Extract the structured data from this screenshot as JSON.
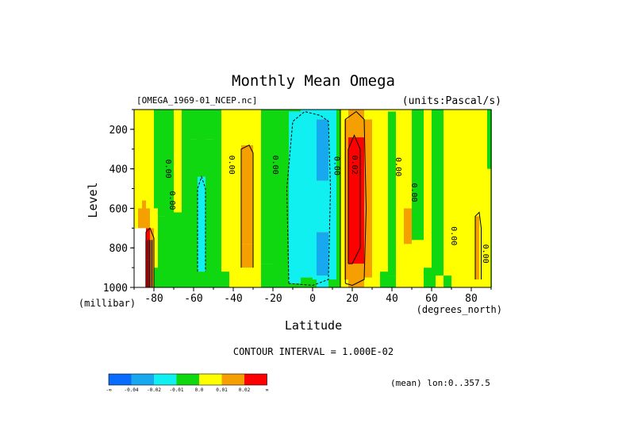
{
  "chart_data": {
    "type": "heatmap",
    "title": "Monthly Mean Omega",
    "dataset_label": "[OMEGA_1969-01_NCEP.nc]",
    "units_label": "(units:Pascal/s)",
    "xlabel": "Latitude",
    "x_unit_label": "(degrees_north)",
    "ylabel": "Level",
    "y_unit_label": "(millibar)",
    "xlim": [
      -90,
      90
    ],
    "ylim": [
      1000,
      100
    ],
    "y_inverted": true,
    "x_ticks": [
      -80,
      -60,
      -40,
      -20,
      0,
      20,
      40,
      60,
      80
    ],
    "y_ticks": [
      200,
      400,
      600,
      800,
      1000
    ],
    "contour_interval_text": "CONTOUR INTERVAL = 1.000E-02",
    "mean_text": "(mean) lon:0..357.5",
    "colorbar": {
      "colors": [
        "#0a6cff",
        "#18a8f0",
        "#10f0f0",
        "#10d810",
        "#ffff00",
        "#f5a000",
        "#ff0000"
      ],
      "labels": [
        "-∞",
        "-0.04",
        "-0.02",
        "-0.01",
        "0.0",
        "0.01",
        "0.02",
        "∞"
      ]
    },
    "contour_labels": [
      {
        "text": "0.00",
        "lat": -74,
        "level": 400
      },
      {
        "text": "0.00",
        "lat": -72,
        "level": 560
      },
      {
        "text": "0.00",
        "lat": -42,
        "level": 380
      },
      {
        "text": "0.00",
        "lat": -20,
        "level": 380
      },
      {
        "text": "0.00",
        "lat": 11,
        "level": 385
      },
      {
        "text": "0.02",
        "lat": 20,
        "level": 380
      },
      {
        "text": "0.00",
        "lat": 42,
        "level": 390
      },
      {
        "text": "0.00",
        "lat": 50,
        "level": 520
      },
      {
        "text": "0.00",
        "lat": 70,
        "level": 740
      },
      {
        "text": "0.00",
        "lat": 86,
        "level": 830
      }
    ],
    "columns": [
      {
        "lat": -90,
        "bands": [
          [
            1000,
            100,
            "#ffff00"
          ]
        ]
      },
      {
        "lat": -88,
        "bands": [
          [
            1000,
            600,
            "#f5a000"
          ],
          [
            600,
            270,
            "#ffff00"
          ],
          [
            270,
            100,
            "#ffff00"
          ]
        ]
      },
      {
        "lat": -86,
        "bands": [
          [
            1000,
            700,
            "#ffff00"
          ],
          [
            700,
            560,
            "#f5a000"
          ],
          [
            560,
            100,
            "#ffff00"
          ]
        ]
      },
      {
        "lat": -84,
        "bands": [
          [
            1000,
            860,
            "#ff0000"
          ],
          [
            860,
            700,
            "#ff0000"
          ],
          [
            700,
            600,
            "#f5a000"
          ],
          [
            600,
            100,
            "#ffff00"
          ]
        ]
      },
      {
        "lat": -82,
        "bands": [
          [
            1000,
            700,
            "#f5a000"
          ],
          [
            700,
            100,
            "#ffff00"
          ]
        ]
      },
      {
        "lat": -80,
        "bands": [
          [
            1000,
            900,
            "#10d810"
          ],
          [
            900,
            600,
            "#ffff00"
          ],
          [
            600,
            100,
            "#10d810"
          ]
        ]
      },
      {
        "lat": -78,
        "bands": [
          [
            1000,
            640,
            "#10d810"
          ],
          [
            640,
            100,
            "#10d810"
          ]
        ]
      },
      {
        "lat": -74,
        "bands": [
          [
            1000,
            100,
            "#10d810"
          ]
        ]
      },
      {
        "lat": -70,
        "bands": [
          [
            1000,
            620,
            "#10d810"
          ],
          [
            620,
            100,
            "#ffff00"
          ]
        ]
      },
      {
        "lat": -66,
        "bands": [
          [
            1000,
            100,
            "#10d810"
          ]
        ]
      },
      {
        "lat": -62,
        "bands": [
          [
            1000,
            250,
            "#10d810"
          ],
          [
            250,
            100,
            "#10d810"
          ]
        ]
      },
      {
        "lat": -58,
        "bands": [
          [
            1000,
            920,
            "#10d810"
          ],
          [
            920,
            440,
            "#10f0f0"
          ],
          [
            440,
            100,
            "#10d810"
          ]
        ]
      },
      {
        "lat": -54,
        "bands": [
          [
            1000,
            250,
            "#10d810"
          ],
          [
            250,
            100,
            "#10d810"
          ]
        ]
      },
      {
        "lat": -50,
        "bands": [
          [
            1000,
            100,
            "#10d810"
          ]
        ]
      },
      {
        "lat": -46,
        "bands": [
          [
            1000,
            920,
            "#10d810"
          ],
          [
            920,
            100,
            "#ffff00"
          ]
        ]
      },
      {
        "lat": -42,
        "bands": [
          [
            1000,
            950,
            "#ffff00"
          ],
          [
            950,
            100,
            "#ffff00"
          ]
        ]
      },
      {
        "lat": -36,
        "bands": [
          [
            1000,
            900,
            "#ffff00"
          ],
          [
            900,
            780,
            "#f5a000"
          ],
          [
            780,
            280,
            "#f5a000"
          ],
          [
            280,
            100,
            "#ffff00"
          ]
        ]
      },
      {
        "lat": -30,
        "bands": [
          [
            1000,
            940,
            "#ffff00"
          ],
          [
            940,
            100,
            "#ffff00"
          ]
        ]
      },
      {
        "lat": -26,
        "bands": [
          [
            1000,
            880,
            "#10d810"
          ],
          [
            880,
            100,
            "#10d810"
          ]
        ]
      },
      {
        "lat": -20,
        "bands": [
          [
            1000,
            100,
            "#10d810"
          ]
        ]
      },
      {
        "lat": -16,
        "bands": [
          [
            1000,
            100,
            "#10d810"
          ]
        ]
      },
      {
        "lat": -12,
        "bands": [
          [
            1000,
            980,
            "#10d810"
          ],
          [
            980,
            110,
            "#10f0f0"
          ],
          [
            110,
            100,
            "#10d810"
          ]
        ]
      },
      {
        "lat": -6,
        "bands": [
          [
            1000,
            950,
            "#10d810"
          ],
          [
            950,
            100,
            "#10f0f0"
          ]
        ]
      },
      {
        "lat": 0,
        "bands": [
          [
            1000,
            960,
            "#10d810"
          ],
          [
            960,
            100,
            "#10f0f0"
          ]
        ]
      },
      {
        "lat": 2,
        "bands": [
          [
            1000,
            940,
            "#10f0f0"
          ],
          [
            940,
            720,
            "#18a8f0"
          ],
          [
            720,
            460,
            "#10f0f0"
          ],
          [
            460,
            150,
            "#18a8f0"
          ],
          [
            150,
            100,
            "#10f0f0"
          ]
        ]
      },
      {
        "lat": 8,
        "bands": [
          [
            1000,
            960,
            "#10d810"
          ],
          [
            960,
            100,
            "#10f0f0"
          ]
        ]
      },
      {
        "lat": 12,
        "bands": [
          [
            1000,
            100,
            "#10d810"
          ]
        ]
      },
      {
        "lat": 14,
        "bands": [
          [
            1000,
            100,
            "#ffff00"
          ]
        ]
      },
      {
        "lat": 16,
        "bands": [
          [
            1000,
            960,
            "#ffff00"
          ],
          [
            960,
            150,
            "#f5a000"
          ],
          [
            150,
            100,
            "#ffff00"
          ]
        ]
      },
      {
        "lat": 18,
        "bands": [
          [
            1000,
            880,
            "#f5a000"
          ],
          [
            880,
            240,
            "#ff0000"
          ],
          [
            240,
            100,
            "#f5a000"
          ]
        ]
      },
      {
        "lat": 26,
        "bands": [
          [
            1000,
            950,
            "#ffff00"
          ],
          [
            950,
            150,
            "#f5a000"
          ],
          [
            150,
            100,
            "#ffff00"
          ]
        ]
      },
      {
        "lat": 30,
        "bands": [
          [
            1000,
            100,
            "#ffff00"
          ]
        ]
      },
      {
        "lat": 34,
        "bands": [
          [
            1000,
            920,
            "#10d810"
          ],
          [
            920,
            100,
            "#ffff00"
          ]
        ]
      },
      {
        "lat": 38,
        "bands": [
          [
            1000,
            940,
            "#10d810"
          ],
          [
            940,
            110,
            "#10d810"
          ],
          [
            110,
            100,
            "#ffff00"
          ]
        ]
      },
      {
        "lat": 42,
        "bands": [
          [
            1000,
            100,
            "#ffff00"
          ]
        ]
      },
      {
        "lat": 46,
        "bands": [
          [
            1000,
            940,
            "#ffff00"
          ],
          [
            940,
            780,
            "#ffff00"
          ],
          [
            780,
            600,
            "#f5a000"
          ],
          [
            600,
            100,
            "#ffff00"
          ]
        ]
      },
      {
        "lat": 50,
        "bands": [
          [
            1000,
            760,
            "#ffff00"
          ],
          [
            760,
            100,
            "#10d810"
          ]
        ]
      },
      {
        "lat": 56,
        "bands": [
          [
            1000,
            900,
            "#10d810"
          ],
          [
            900,
            100,
            "#ffff00"
          ]
        ]
      },
      {
        "lat": 60,
        "bands": [
          [
            1000,
            100,
            "#10d810"
          ]
        ]
      },
      {
        "lat": 62,
        "bands": [
          [
            1000,
            940,
            "#ffff00"
          ],
          [
            940,
            100,
            "#10d810"
          ]
        ]
      },
      {
        "lat": 66,
        "bands": [
          [
            1000,
            940,
            "#10d810"
          ],
          [
            940,
            400,
            "#ffff00"
          ],
          [
            400,
            100,
            "#ffff00"
          ]
        ]
      },
      {
        "lat": 70,
        "bands": [
          [
            1000,
            100,
            "#ffff00"
          ]
        ]
      },
      {
        "lat": 74,
        "bands": [
          [
            1000,
            800,
            "#ffff00"
          ],
          [
            800,
            200,
            "#ffff00"
          ],
          [
            200,
            100,
            "#ffff00"
          ]
        ]
      },
      {
        "lat": 78,
        "bands": [
          [
            1000,
            100,
            "#ffff00"
          ]
        ]
      },
      {
        "lat": 82,
        "bands": [
          [
            1000,
            960,
            "#ffff00"
          ],
          [
            960,
            640,
            "#f5a000"
          ],
          [
            640,
            100,
            "#ffff00"
          ]
        ]
      },
      {
        "lat": 84,
        "bands": [
          [
            1000,
            100,
            "#ffff00"
          ]
        ]
      },
      {
        "lat": 88,
        "bands": [
          [
            1000,
            400,
            "#ffff00"
          ],
          [
            400,
            100,
            "#10d810"
          ]
        ]
      },
      {
        "lat": 90,
        "bands": [
          [
            1000,
            100,
            "#10d810"
          ]
        ]
      }
    ],
    "contours": [
      {
        "dash": false,
        "points": [
          [
            14,
            1000
          ],
          [
            14,
            100
          ]
        ]
      },
      {
        "dash": false,
        "points": [
          [
            16.5,
            980
          ],
          [
            16.5,
            150
          ],
          [
            22,
            110
          ],
          [
            26,
            150
          ],
          [
            27,
            600
          ],
          [
            26,
            960
          ],
          [
            20,
            990
          ],
          [
            16.5,
            980
          ]
        ]
      },
      {
        "dash": false,
        "points": [
          [
            18,
            880
          ],
          [
            18,
            300
          ],
          [
            21,
            230
          ],
          [
            24,
            300
          ],
          [
            24,
            800
          ],
          [
            20,
            880
          ],
          [
            18,
            880
          ]
        ]
      },
      {
        "dash": true,
        "points": [
          [
            -12,
            980
          ],
          [
            -13,
            500
          ],
          [
            -10,
            160
          ],
          [
            -4,
            110
          ],
          [
            4,
            130
          ],
          [
            8,
            160
          ],
          [
            9,
            500
          ],
          [
            8,
            960
          ],
          [
            0,
            990
          ],
          [
            -12,
            980
          ]
        ]
      },
      {
        "dash": true,
        "points": [
          [
            -58,
            920
          ],
          [
            -58,
            500
          ],
          [
            -56,
            440
          ],
          [
            -54,
            500
          ],
          [
            -54,
            920
          ]
        ]
      },
      {
        "dash": false,
        "points": [
          [
            -84,
            1000
          ],
          [
            -84,
            720
          ],
          [
            -82,
            700
          ],
          [
            -80,
            750
          ],
          [
            -80,
            1000
          ]
        ]
      },
      {
        "dash": false,
        "points": [
          [
            -36,
            900
          ],
          [
            -36,
            300
          ],
          [
            -32,
            280
          ],
          [
            -30,
            320
          ],
          [
            -30,
            900
          ]
        ]
      },
      {
        "dash": false,
        "points": [
          [
            82,
            960
          ],
          [
            82,
            640
          ],
          [
            84,
            620
          ],
          [
            85,
            700
          ],
          [
            85,
            960
          ]
        ]
      }
    ]
  }
}
